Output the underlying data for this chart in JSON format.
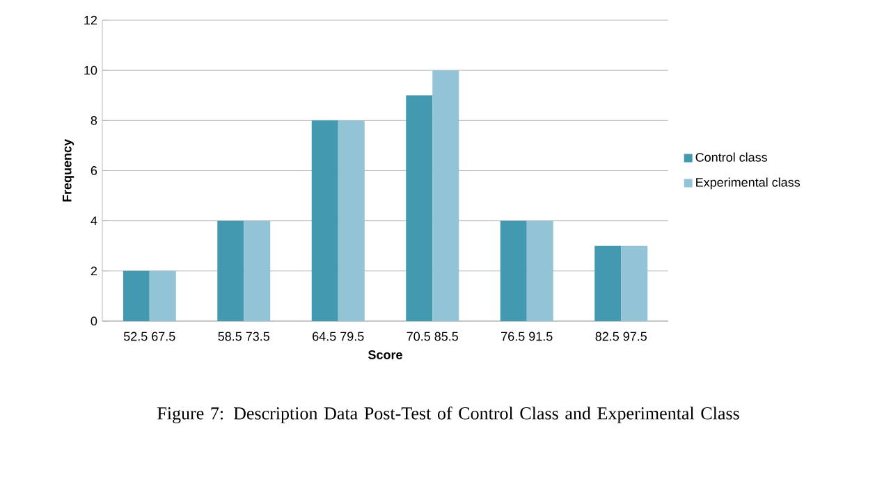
{
  "chart_data": {
    "type": "bar",
    "categories": [
      "52.5 67.5",
      "58.5 73.5",
      "64.5 79.5",
      "70.5 85.5",
      "76.5 91.5",
      "82.5 97.5"
    ],
    "series": [
      {
        "name": "Control class",
        "color": "#4399b0",
        "values": [
          2,
          4,
          8,
          9,
          4,
          3
        ]
      },
      {
        "name": "Experimental class",
        "color": "#93c4d6",
        "values": [
          2,
          4,
          8,
          10,
          4,
          3
        ]
      }
    ],
    "xlabel": "Score",
    "ylabel": "Frequency",
    "ylim": [
      0,
      12
    ],
    "yticks": [
      0,
      2,
      4,
      6,
      8,
      10,
      12
    ],
    "grid": "y",
    "legend": "right",
    "annotations": [
      "Figure 7: Description Data Post-Test of Control Class and Experimental Class"
    ]
  }
}
